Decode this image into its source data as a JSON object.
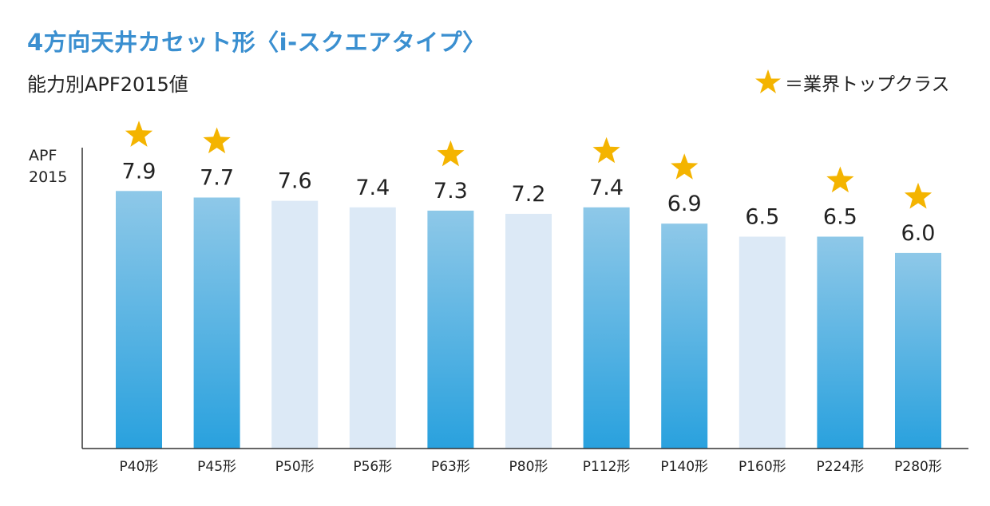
{
  "title": "4方向天井カセット形〈i-スクエアタイプ〉",
  "subtitle": "能力別APF2015値",
  "legend": {
    "star_label": "＝業界トップクラス"
  },
  "colors": {
    "title": "#3a8fd0",
    "bar_highlight_top": "#8ec8e8",
    "bar_highlight_bottom": "#29a1de",
    "bar_normal": "#dce9f6",
    "star": "#f4b400",
    "axis": "#333333"
  },
  "chart_data": {
    "type": "bar",
    "ylabel": [
      "APF",
      "2015"
    ],
    "categories": [
      "P40形",
      "P45形",
      "P50形",
      "P56形",
      "P63形",
      "P80形",
      "P112形",
      "P140形",
      "P160形",
      "P224形",
      "P280形"
    ],
    "values": [
      7.9,
      7.7,
      7.6,
      7.4,
      7.3,
      7.2,
      7.4,
      6.9,
      6.5,
      6.5,
      6.0
    ],
    "value_labels": [
      "7.9",
      "7.7",
      "7.6",
      "7.4",
      "7.3",
      "7.2",
      "7.4",
      "6.9",
      "6.5",
      "6.5",
      "6.0"
    ],
    "top_class": [
      true,
      true,
      false,
      false,
      true,
      false,
      true,
      true,
      false,
      true,
      true
    ],
    "ylim": [
      0,
      9.5
    ],
    "grid": false,
    "legend_position": "top-right"
  }
}
